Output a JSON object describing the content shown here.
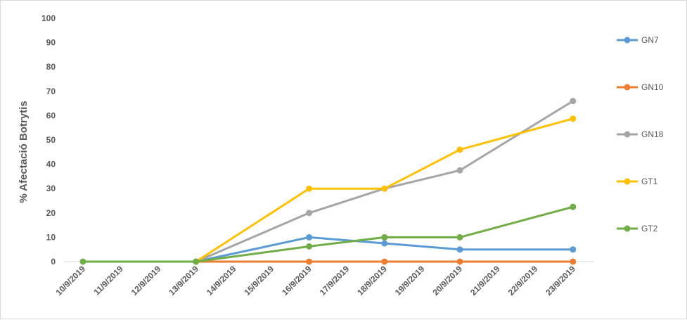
{
  "chart_data": {
    "type": "line",
    "title": "",
    "xlabel": "",
    "ylabel": "% Afectació Botrytis",
    "ylim": [
      0,
      100
    ],
    "yticks": [
      0,
      10,
      20,
      30,
      40,
      50,
      60,
      70,
      80,
      90,
      100
    ],
    "categories": [
      "10/9/2019",
      "11/9/2019",
      "12/9/2019",
      "13/9/2019",
      "14/9/2019",
      "15/9/2019",
      "16/9/2019",
      "17/9/2019",
      "18/9/2019",
      "19/9/2019",
      "20/9/2019",
      "21/9/2019",
      "22/9/2019",
      "23/9/2019"
    ],
    "grid": false,
    "legend_position": "right",
    "series": [
      {
        "name": "GN7",
        "color": "#5b9bd5",
        "x": [
          "13/9/2019",
          "16/9/2019",
          "18/9/2019",
          "20/9/2019",
          "23/9/2019"
        ],
        "values": [
          0,
          10,
          7.5,
          5,
          5
        ]
      },
      {
        "name": "GN10",
        "color": "#ed7d31",
        "x": [
          "13/9/2019",
          "16/9/2019",
          "18/9/2019",
          "20/9/2019",
          "23/9/2019"
        ],
        "values": [
          0,
          0,
          0,
          0,
          0
        ]
      },
      {
        "name": "GN18",
        "color": "#a5a5a5",
        "x": [
          "13/9/2019",
          "16/9/2019",
          "18/9/2019",
          "20/9/2019",
          "23/9/2019"
        ],
        "values": [
          0,
          20,
          30,
          37.5,
          66
        ]
      },
      {
        "name": "GT1",
        "color": "#ffc000",
        "x": [
          "13/9/2019",
          "16/9/2019",
          "18/9/2019",
          "20/9/2019",
          "23/9/2019"
        ],
        "values": [
          0,
          30,
          30,
          46,
          58.75
        ]
      },
      {
        "name": "GT2",
        "color": "#70ad47",
        "x": [
          "10/9/2019",
          "13/9/2019",
          "16/9/2019",
          "18/9/2019",
          "20/9/2019",
          "23/9/2019"
        ],
        "values": [
          0,
          0,
          6.25,
          10,
          10,
          22.5
        ]
      }
    ]
  }
}
